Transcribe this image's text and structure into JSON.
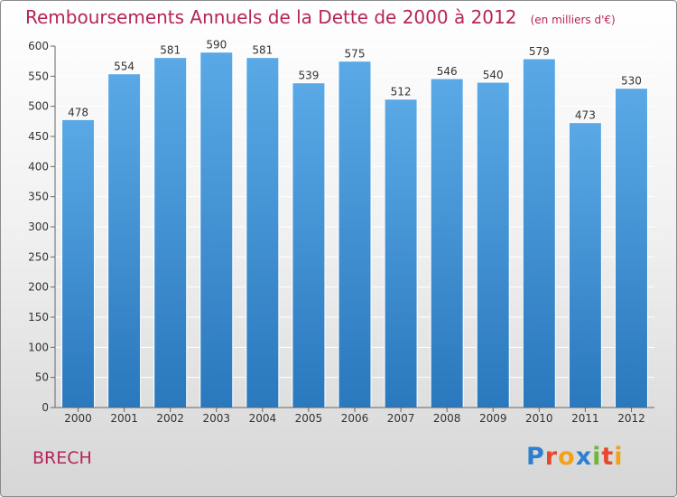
{
  "header": {
    "title": "Remboursements Annuels de la Dette de 2000 à 2012",
    "unit": "(en milliers d'€)"
  },
  "footer": {
    "commune": "BRECH",
    "brand": "Proxiti"
  },
  "colors": {
    "title": "#b5245a",
    "bar_top": "#5aa9e6",
    "bar_bottom": "#2a78bd",
    "grid": "#ffffff"
  },
  "chart_data": {
    "type": "bar",
    "title": "Remboursements Annuels de la Dette de 2000 à 2012",
    "subtitle": "(en milliers d'€)",
    "xlabel": "",
    "ylabel": "",
    "categories": [
      "2000",
      "2001",
      "2002",
      "2003",
      "2004",
      "2005",
      "2006",
      "2007",
      "2008",
      "2009",
      "2010",
      "2011",
      "2012"
    ],
    "values": [
      478,
      554,
      581,
      590,
      581,
      539,
      575,
      512,
      546,
      540,
      579,
      473,
      530
    ],
    "ylim": [
      0,
      600
    ],
    "yticks": [
      0,
      50,
      100,
      150,
      200,
      250,
      300,
      350,
      400,
      450,
      500,
      550,
      600
    ],
    "grid": true,
    "data_labels": true
  }
}
